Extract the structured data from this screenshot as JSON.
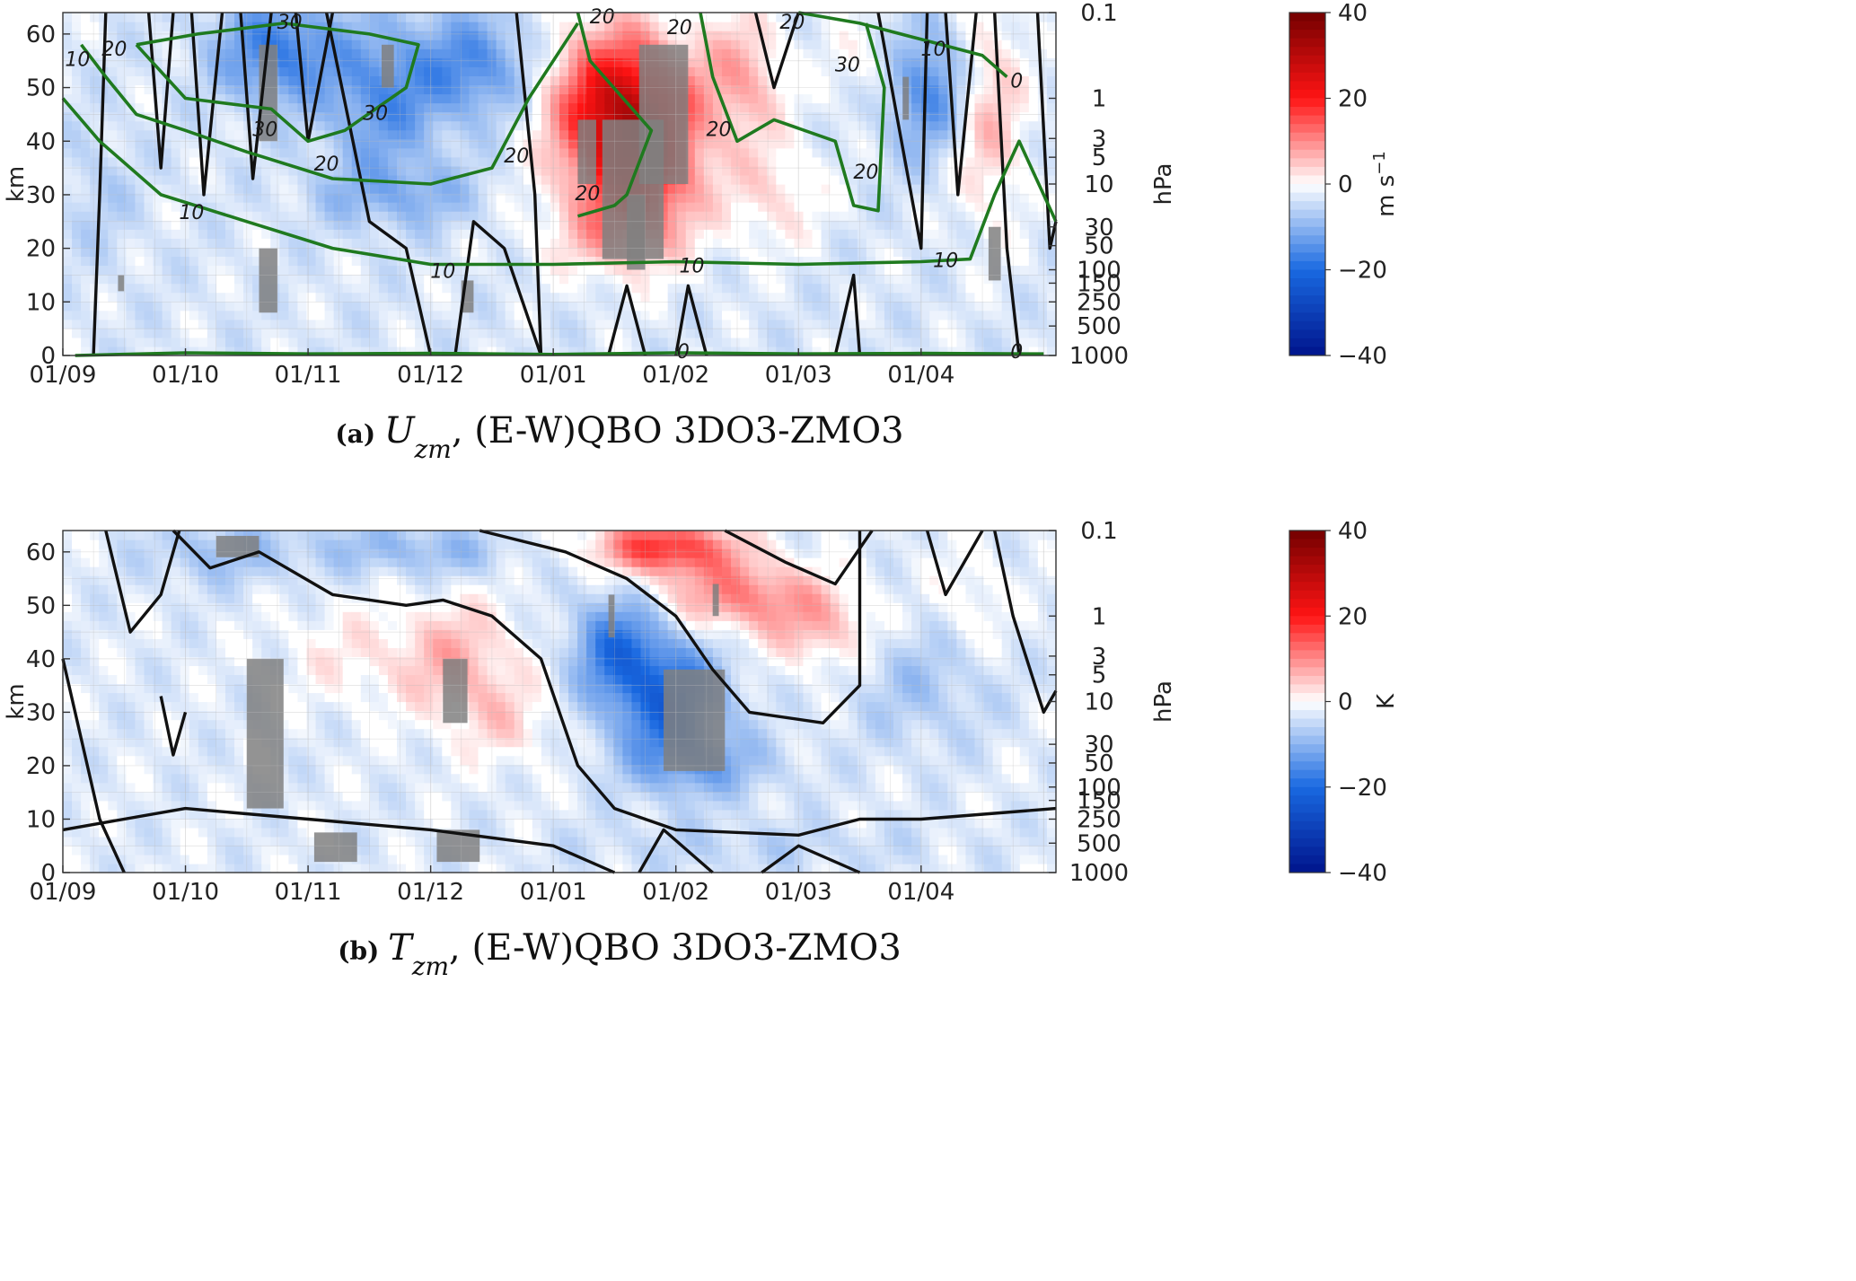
{
  "chart_data": [
    {
      "type": "heatmap",
      "panel_tag": "(a)",
      "title_symbol": "U",
      "title_subscript": "zm",
      "title_rest": ", (E-W)QBO 3DO3-ZMO3",
      "ylabel_left": "km",
      "ylabel_right": "hPa",
      "colorbar_label": "m s",
      "colorbar_label_sup": "−1",
      "x_ticks": [
        "01/09",
        "01/10",
        "01/11",
        "01/12",
        "01/01",
        "01/02",
        "01/03",
        "01/04"
      ],
      "y_ticks": [
        "0",
        "10",
        "20",
        "30",
        "40",
        "50",
        "60"
      ],
      "ylim": [
        0,
        64
      ],
      "pressure_ticks": [
        {
          "label": "0.1",
          "km": 64
        },
        {
          "label": "1",
          "km": 48
        },
        {
          "label": "3",
          "km": 40.5
        },
        {
          "label": "5",
          "km": 37
        },
        {
          "label": "10",
          "km": 32
        },
        {
          "label": "30",
          "km": 24
        },
        {
          "label": "50",
          "km": 20.5
        },
        {
          "label": "100",
          "km": 16
        },
        {
          "label": "150",
          "km": 13.5
        },
        {
          "label": "250",
          "km": 10
        },
        {
          "label": "500",
          "km": 5.5
        },
        {
          "label": "1000",
          "km": 0
        }
      ],
      "colorbar_ticks": [
        "40",
        "20",
        "0",
        "−20",
        "−40"
      ],
      "color_range": [
        -40,
        40
      ],
      "anomaly_blobs": [
        {
          "t": 1.75,
          "z": 57,
          "rt": 0.5,
          "rz": 10,
          "v": -14
        },
        {
          "t": 2.6,
          "z": 48,
          "rt": 0.45,
          "rz": 14,
          "v": -11
        },
        {
          "t": 2.35,
          "z": 30,
          "rt": 0.4,
          "rz": 6,
          "v": -4
        },
        {
          "t": 2.95,
          "z": 30,
          "rt": 0.45,
          "rz": 6,
          "v": -6
        },
        {
          "t": 3.35,
          "z": 54,
          "rt": 0.5,
          "rz": 10,
          "v": -12
        },
        {
          "t": 4.55,
          "z": 47,
          "rt": 0.55,
          "rz": 14,
          "v": 28
        },
        {
          "t": 4.7,
          "z": 33,
          "rt": 0.5,
          "rz": 14,
          "v": 18
        },
        {
          "t": 4.35,
          "z": 22,
          "rt": 0.55,
          "rz": 7,
          "v": 5
        },
        {
          "t": 5.55,
          "z": 52,
          "rt": 0.35,
          "rz": 12,
          "v": 10
        },
        {
          "t": 5.8,
          "z": 30,
          "rt": 0.4,
          "rz": 10,
          "v": 6
        },
        {
          "t": 6.6,
          "z": 55,
          "rt": 0.35,
          "rz": 9,
          "v": 4
        },
        {
          "t": 7.05,
          "z": 50,
          "rt": 0.35,
          "rz": 12,
          "v": -13
        },
        {
          "t": 7.55,
          "z": 45,
          "rt": 0.3,
          "rz": 20,
          "v": 9
        },
        {
          "t": 0.3,
          "z": 30,
          "rt": 0.3,
          "rz": 12,
          "v": -3
        }
      ],
      "contours_black_labels": [
        {
          "text": "0",
          "t": 7.78,
          "z": 51
        },
        {
          "text": "0",
          "t": 5.06,
          "z": 0.5
        },
        {
          "text": "0",
          "t": 7.78,
          "z": 0.5
        }
      ],
      "contours_green_labels": [
        {
          "text": "10",
          "t": 0.12,
          "z": 55
        },
        {
          "text": "20",
          "t": 0.42,
          "z": 57
        },
        {
          "text": "30",
          "t": 1.85,
          "z": 62
        },
        {
          "text": "30",
          "t": 1.65,
          "z": 42
        },
        {
          "text": "30",
          "t": 2.55,
          "z": 45
        },
        {
          "text": "20",
          "t": 2.15,
          "z": 35.5
        },
        {
          "text": "10",
          "t": 1.05,
          "z": 26.5
        },
        {
          "text": "20",
          "t": 3.7,
          "z": 37
        },
        {
          "text": "20",
          "t": 4.4,
          "z": 63
        },
        {
          "text": "20",
          "t": 5.03,
          "z": 61
        },
        {
          "text": "20",
          "t": 4.28,
          "z": 30
        },
        {
          "text": "20",
          "t": 5.35,
          "z": 42
        },
        {
          "text": "30",
          "t": 6.4,
          "z": 54
        },
        {
          "text": "20",
          "t": 6.55,
          "z": 34
        },
        {
          "text": "20",
          "t": 5.95,
          "z": 62
        },
        {
          "text": "10",
          "t": 7.1,
          "z": 57
        },
        {
          "text": "10",
          "t": 3.1,
          "z": 15.5
        },
        {
          "text": "10",
          "t": 5.13,
          "z": 16.5
        },
        {
          "text": "10",
          "t": 7.2,
          "z": 17.5
        }
      ]
    },
    {
      "type": "heatmap",
      "panel_tag": "(b)",
      "title_symbol": "T",
      "title_subscript": "zm",
      "title_rest": ", (E-W)QBO 3DO3-ZMO3",
      "ylabel_left": "km",
      "ylabel_right": "hPa",
      "colorbar_label": "K",
      "colorbar_label_sup": "",
      "x_ticks": [
        "01/09",
        "01/10",
        "01/11",
        "01/12",
        "01/01",
        "01/02",
        "01/03",
        "01/04"
      ],
      "y_ticks": [
        "0",
        "10",
        "20",
        "30",
        "40",
        "50",
        "60"
      ],
      "ylim": [
        0,
        64
      ],
      "pressure_ticks": [
        {
          "label": "0.1",
          "km": 64
        },
        {
          "label": "1",
          "km": 48
        },
        {
          "label": "3",
          "km": 40.5
        },
        {
          "label": "5",
          "km": 37
        },
        {
          "label": "10",
          "km": 32
        },
        {
          "label": "30",
          "km": 24
        },
        {
          "label": "50",
          "km": 20.5
        },
        {
          "label": "100",
          "km": 16
        },
        {
          "label": "150",
          "km": 13.5
        },
        {
          "label": "250",
          "km": 10
        },
        {
          "label": "500",
          "km": 5.5
        },
        {
          "label": "1000",
          "km": 0
        }
      ],
      "colorbar_ticks": [
        "40",
        "20",
        "0",
        "−20",
        "−40"
      ],
      "color_range": [
        -40,
        40
      ],
      "anomaly_blobs": [
        {
          "t": 1.3,
          "z": 60,
          "rt": 0.6,
          "rz": 6,
          "v": -6
        },
        {
          "t": 2.5,
          "z": 61,
          "rt": 0.6,
          "rz": 5,
          "v": -5
        },
        {
          "t": 3.2,
          "z": 60,
          "rt": 0.5,
          "rz": 5,
          "v": -5
        },
        {
          "t": 2.3,
          "z": 41,
          "rt": 0.5,
          "rz": 9,
          "v": 4
        },
        {
          "t": 3.2,
          "z": 40,
          "rt": 0.5,
          "rz": 11,
          "v": 9
        },
        {
          "t": 3.6,
          "z": 28,
          "rt": 0.4,
          "rz": 8,
          "v": 5
        },
        {
          "t": 4.5,
          "z": 42,
          "rt": 0.35,
          "rz": 10,
          "v": -14
        },
        {
          "t": 4.95,
          "z": 32,
          "rt": 0.45,
          "rz": 12,
          "v": -18
        },
        {
          "t": 5.25,
          "z": 20,
          "rt": 0.6,
          "rz": 6,
          "v": -7
        },
        {
          "t": 4.9,
          "z": 61,
          "rt": 0.55,
          "rz": 5,
          "v": 20
        },
        {
          "t": 5.5,
          "z": 52,
          "rt": 0.6,
          "rz": 7,
          "v": 13
        },
        {
          "t": 6.2,
          "z": 46,
          "rt": 0.45,
          "rz": 8,
          "v": 8
        },
        {
          "t": 7.0,
          "z": 36,
          "rt": 0.6,
          "rz": 12,
          "v": -5
        },
        {
          "t": 5.6,
          "z": 5,
          "rt": 1.5,
          "rz": 5,
          "v": -3
        },
        {
          "t": 7.4,
          "z": 50,
          "rt": 0.3,
          "rz": 10,
          "v": 4
        }
      ],
      "contours_black_labels": [],
      "contours_green_labels": []
    }
  ]
}
